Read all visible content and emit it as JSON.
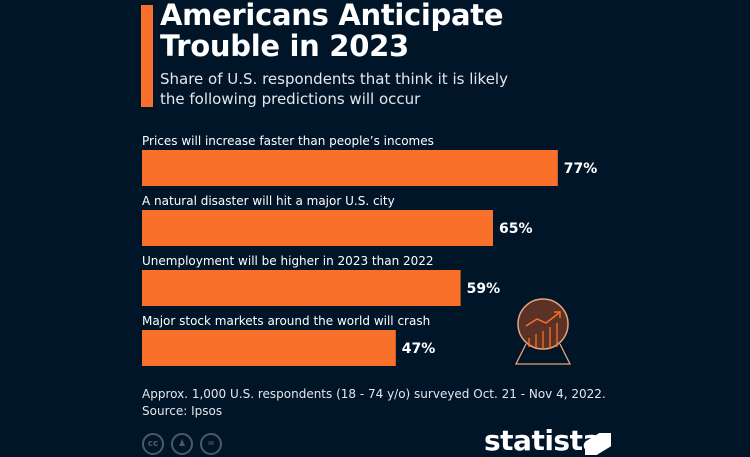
{
  "header": {
    "title_line1": "Americans Anticipate",
    "title_line2": "Trouble in 2023",
    "subtitle_line1": "Share of U.S. respondents that think it is likely",
    "subtitle_line2": "the following predictions will occur"
  },
  "colors": {
    "background": "#011529",
    "accent": "#f8702a",
    "text": "#ffffff"
  },
  "chart_data": {
    "type": "bar",
    "orientation": "horizontal",
    "title": "Americans Anticipate Trouble in 2023",
    "subtitle": "Share of U.S. respondents that think it is likely the following predictions will occur",
    "categories": [
      "Prices will increase faster than people’s incomes",
      "A natural disaster will hit a major U.S. city",
      "Unemployment will be higher in 2023 than 2022",
      "Major stock markets around the world will crash"
    ],
    "values": [
      77,
      65,
      59,
      47
    ],
    "value_labels": [
      "77%",
      "65%",
      "59%",
      "47%"
    ],
    "unit": "%",
    "xlabel": "",
    "ylabel": "",
    "xlim": [
      0,
      100
    ],
    "grid": false,
    "legend": "none"
  },
  "footer": {
    "note": "Approx. 1,000 U.S. respondents (18 - 74 y/o) surveyed Oct. 21 - Nov 4, 2022.",
    "source": "Source: Ipsos",
    "license_icons": [
      "cc-icon",
      "by-icon",
      "nd-icon"
    ],
    "license_glyphs": [
      "cc",
      "♟",
      "="
    ],
    "brand": "statista"
  }
}
